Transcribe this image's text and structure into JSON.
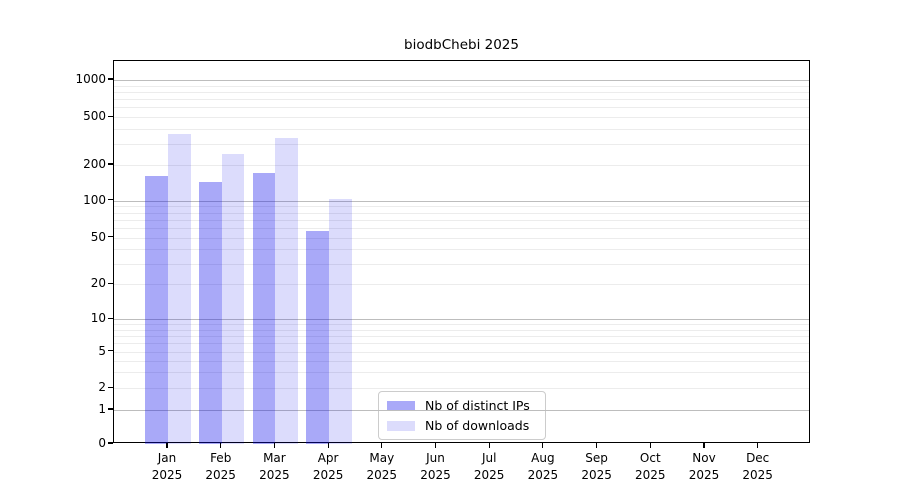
{
  "title": "biodbChebi 2025",
  "legend": {
    "items": [
      {
        "label": "Nb of distinct IPs",
        "color": "rgba(10,10,235,0.35)"
      },
      {
        "label": "Nb of downloads",
        "color": "rgba(10,10,235,0.14)"
      }
    ]
  },
  "chart_data": {
    "type": "bar",
    "title": "biodbChebi 2025",
    "xlabel": "",
    "ylabel": "",
    "yscale": "symlog",
    "ylim": [
      0,
      1400
    ],
    "grid": true,
    "legend_position": "inside bottom-center",
    "categories": [
      "Jan 2025",
      "Feb 2025",
      "Mar 2025",
      "Apr 2025",
      "May 2025",
      "Jun 2025",
      "Jul 2025",
      "Aug 2025",
      "Sep 2025",
      "Oct 2025",
      "Nov 2025",
      "Dec 2025"
    ],
    "y_ticks": [
      0,
      1,
      2,
      5,
      10,
      20,
      50,
      100,
      200,
      500,
      1000
    ],
    "series": [
      {
        "name": "Nb of distinct IPs",
        "color": "rgba(10,10,235,0.35)",
        "values": [
          161,
          143,
          170,
          57,
          null,
          null,
          null,
          null,
          null,
          null,
          null,
          null
        ]
      },
      {
        "name": "Nb of downloads",
        "color": "rgba(10,10,235,0.14)",
        "values": [
          360,
          245,
          338,
          104,
          null,
          null,
          null,
          null,
          null,
          null,
          null,
          null
        ]
      }
    ]
  }
}
